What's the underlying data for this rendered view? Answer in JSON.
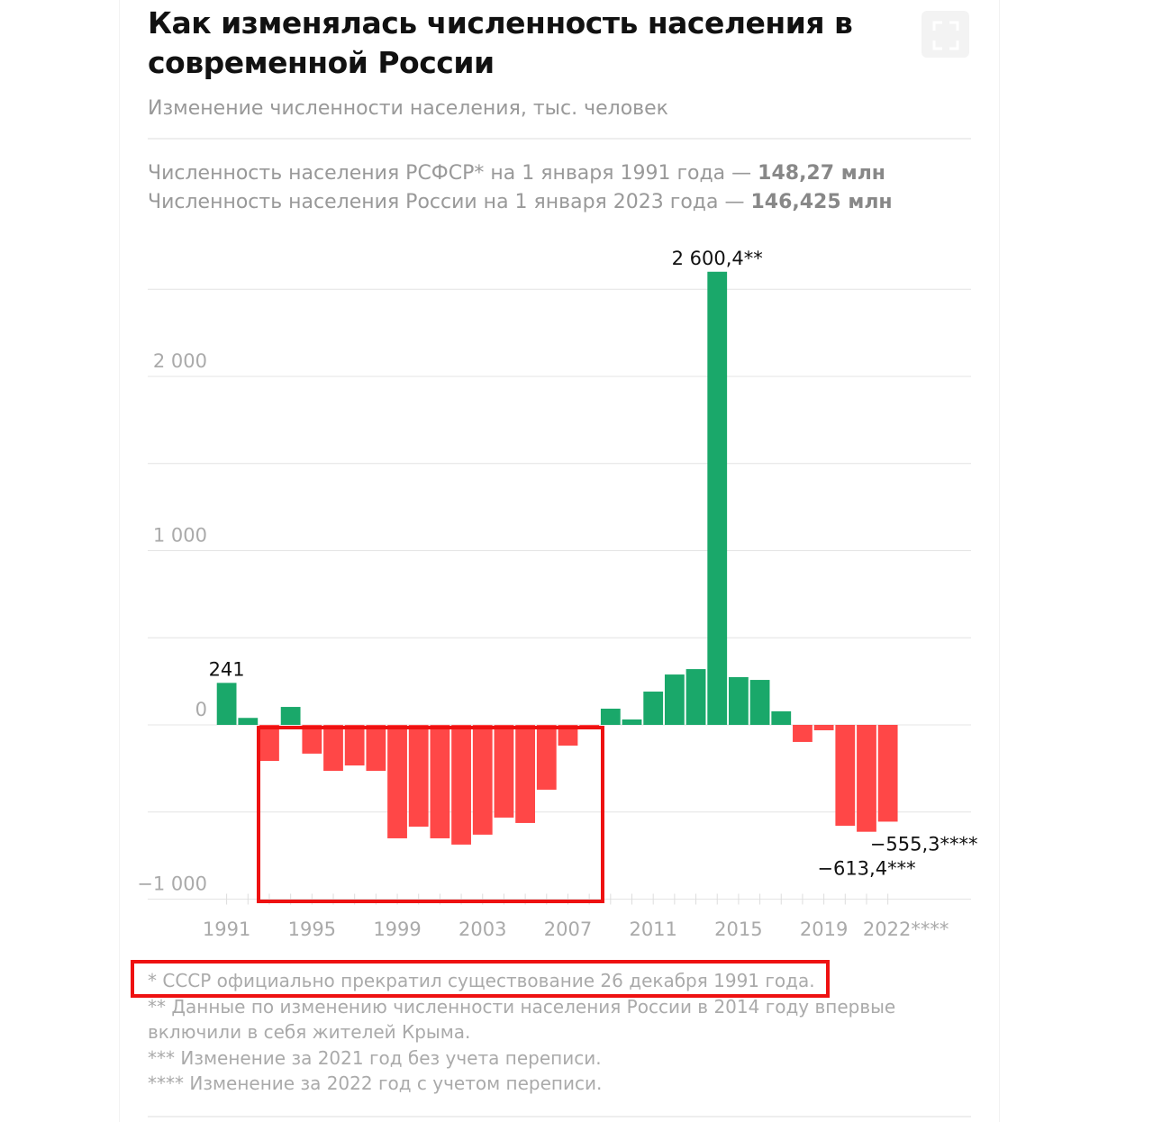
{
  "chart_data": {
    "type": "bar",
    "title": "Как изменялась численность населения в современной России",
    "subtitle": "Изменение численности населения, тыс. человек",
    "notes": [
      {
        "text": "Численность населения РСФСР* на 1 января 1991 года — ",
        "value": "148,27 млн"
      },
      {
        "text": "Численность населения России на 1 января 2023 года — ",
        "value": "146,425 млн"
      }
    ],
    "x": [
      1991,
      1992,
      1993,
      1994,
      1995,
      1996,
      1997,
      1998,
      1999,
      2000,
      2001,
      2002,
      2003,
      2004,
      2005,
      2006,
      2007,
      2008,
      2009,
      2010,
      2011,
      2012,
      2013,
      2014,
      2015,
      2016,
      2017,
      2018,
      2019,
      2020,
      2021,
      2022
    ],
    "values": [
      241,
      40,
      -207,
      103,
      -165,
      -264,
      -233,
      -264,
      -651,
      -584,
      -651,
      -687,
      -630,
      -532,
      -563,
      -372,
      -119,
      -10,
      93,
      31,
      191,
      289,
      320,
      2600.4,
      274,
      258,
      78,
      -98,
      -31,
      -579,
      -613.4,
      -555.3
    ],
    "value_labels": [
      "241",
      null,
      null,
      null,
      null,
      null,
      null,
      null,
      null,
      null,
      null,
      null,
      null,
      null,
      null,
      null,
      null,
      null,
      null,
      null,
      null,
      null,
      null,
      "2 600,4**",
      null,
      null,
      null,
      null,
      null,
      null,
      "−613,4***",
      "−555,3****"
    ],
    "positive_color": "#1aa86a",
    "negative_color": "#ff4747",
    "xlim": [
      1987.3,
      2025.9
    ],
    "xticks": [
      1991,
      1995,
      1999,
      2003,
      2007,
      2011,
      2015,
      2019,
      {
        "value": 2022,
        "label": "2022****"
      }
    ],
    "ylim": [
      -1000,
      2700
    ],
    "yticks": [
      {
        "value": -1000,
        "label": "−1 000"
      },
      0,
      {
        "value": 1000,
        "label": "1 000"
      },
      {
        "value": 2000,
        "label": "2 000"
      }
    ],
    "yminor": [
      -500,
      500,
      1500,
      2500
    ],
    "grid": true,
    "footnotes": [
      "* СССР официально прекратил существование 26 декабря 1991 года.",
      "** Данные по изменению численности населения России в 2014 году впервые включили в себя жителей Крыма.",
      "*** Изменение за 2021 год без учета переписи.",
      "**** Изменение за 2022 год с учетом переписи."
    ]
  }
}
